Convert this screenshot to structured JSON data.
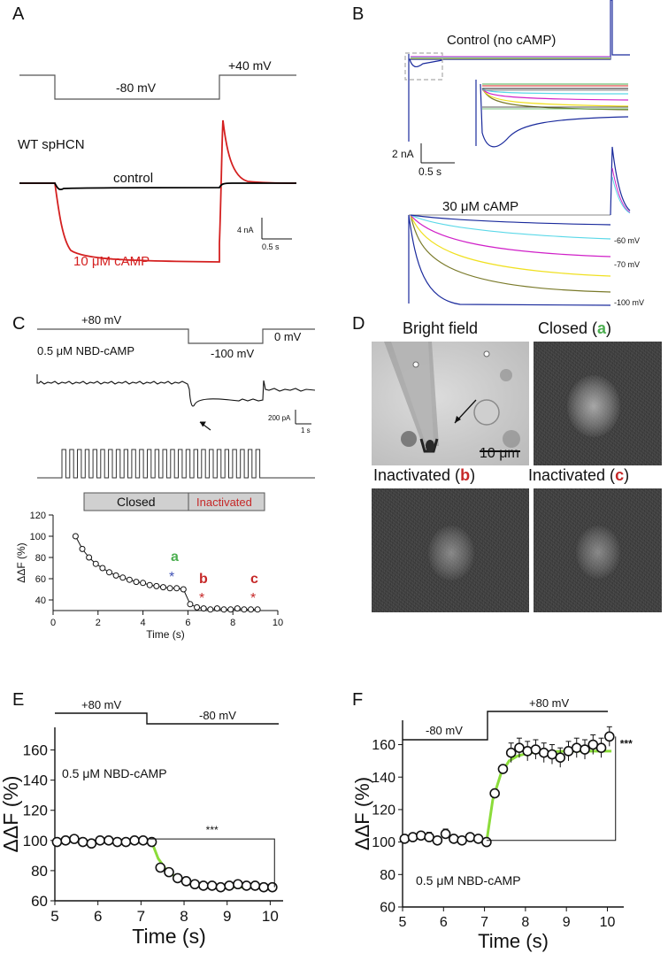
{
  "panels": {
    "A": {
      "label": "A",
      "v_hold": "-80 mV",
      "v_step": "+40 mV",
      "construct": "WT spHCN",
      "trace_control": "control",
      "trace_camp": "10 μM cAMP",
      "scale_current": "4 nA",
      "scale_time": "0.5 s",
      "colors": {
        "control": "#000000",
        "camp": "#d42020"
      }
    },
    "B": {
      "label": "B",
      "title_top": "Control (no cAMP)",
      "title_bottom": "30 μM cAMP",
      "scale_current": "2 nA",
      "scale_time": "0.5 s",
      "voltage_labels": [
        "-60 mV",
        "-70 mV",
        "-100 mV"
      ],
      "trace_colors": [
        "#1a2a9c",
        "#5ad8e8",
        "#d020c8",
        "#f0e020",
        "#7a7a2a",
        "#1a2a9c"
      ]
    },
    "C": {
      "label": "C",
      "v1": "+80 mV",
      "v2": "-100 mV",
      "v3": "0 mV",
      "ligand": "0.5 μM NBD-cAMP",
      "scale_current": "200 pA",
      "scale_time": "1 s",
      "bar_closed": "Closed",
      "bar_inactivated": "Inactivated",
      "markers": [
        "a",
        "b",
        "c"
      ],
      "colors": {
        "a": "#4caf50",
        "b": "#c62828",
        "c": "#c62828",
        "star_a": "#3f51b5",
        "star_bc": "#c62828"
      }
    },
    "D": {
      "label": "D",
      "titles": [
        {
          "text": "Bright field",
          "letter": ""
        },
        {
          "text": "Closed (",
          "letter": "a",
          "close": ")"
        },
        {
          "text": "Inactivated (",
          "letter": "b",
          "close": ")"
        },
        {
          "text": "Inactivated (",
          "letter": "c",
          "close": ")"
        }
      ],
      "scalebar": "10 μm"
    },
    "E": {
      "label": "E",
      "v1": "+80 mV",
      "v2": "-80 mV",
      "ligand": "0.5 μM NBD-cAMP",
      "significance": "***"
    },
    "F": {
      "label": "F",
      "v1": "-80 mV",
      "v2": "+80 mV",
      "ligand": "0.5 μM NBD-cAMP",
      "significance": "***"
    }
  },
  "chart_data": [
    {
      "id": "C",
      "type": "line",
      "xlabel": "Time (s)",
      "ylabel": "ΔΔF (%)",
      "xlim": [
        0,
        10
      ],
      "ylim": [
        30,
        120
      ],
      "xticks": [
        0,
        2,
        4,
        6,
        8,
        10
      ],
      "yticks": [
        40,
        60,
        80,
        100,
        120
      ],
      "x": [
        1.0,
        1.3,
        1.6,
        1.9,
        2.2,
        2.5,
        2.8,
        3.1,
        3.4,
        3.7,
        4.0,
        4.3,
        4.6,
        4.9,
        5.2,
        5.5,
        5.8,
        6.1,
        6.4,
        6.7,
        7.0,
        7.3,
        7.6,
        7.9,
        8.2,
        8.5,
        8.8,
        9.1
      ],
      "series": [
        {
          "values": [
            100,
            88,
            80,
            74,
            70,
            66,
            63,
            61,
            59,
            57,
            56,
            54,
            53,
            52,
            51,
            51,
            50,
            36,
            33,
            32,
            31,
            32,
            31,
            31,
            32,
            31,
            31,
            31
          ]
        }
      ]
    },
    {
      "id": "E",
      "type": "scatter",
      "xlabel": "Time (s)",
      "ylabel": "ΔΔF (%)",
      "xlim": [
        5,
        10.3
      ],
      "ylim": [
        60,
        175
      ],
      "xticks": [
        5,
        6,
        7,
        8,
        9,
        10
      ],
      "yticks": [
        60,
        80,
        100,
        120,
        140,
        160
      ],
      "x": [
        5.05,
        5.25,
        5.45,
        5.65,
        5.85,
        6.05,
        6.25,
        6.45,
        6.65,
        6.85,
        7.05,
        7.25,
        7.45,
        7.65,
        7.85,
        8.05,
        8.25,
        8.45,
        8.65,
        8.85,
        9.05,
        9.25,
        9.45,
        9.65,
        9.85,
        10.05
      ],
      "series": [
        {
          "values": [
            99,
            100,
            101,
            99,
            98,
            100,
            100,
            99,
            99,
            100,
            100,
            99,
            82,
            79,
            75,
            73,
            71,
            70,
            70,
            69,
            70,
            71,
            70,
            70,
            69,
            69
          ]
        }
      ],
      "fit": {
        "x": [
          7.25,
          7.4,
          7.6,
          7.8,
          8.0,
          8.3,
          8.6,
          9.0,
          9.4,
          10.1
        ],
        "y": [
          99,
          88,
          80,
          76,
          73,
          71,
          70,
          69.5,
          69,
          69
        ]
      },
      "significance": {
        "text": "***",
        "from": 7.2,
        "to": 10.1,
        "y": 101
      }
    },
    {
      "id": "F",
      "type": "scatter",
      "xlabel": "Time (s)",
      "ylabel": "ΔΔF (%)",
      "xlim": [
        5,
        10.4
      ],
      "ylim": [
        60,
        175
      ],
      "xticks": [
        5,
        6,
        7,
        8,
        9,
        10
      ],
      "yticks": [
        60,
        80,
        100,
        120,
        140,
        160
      ],
      "x": [
        5.05,
        5.25,
        5.45,
        5.65,
        5.85,
        6.05,
        6.25,
        6.45,
        6.65,
        6.85,
        7.05,
        7.25,
        7.45,
        7.65,
        7.85,
        8.05,
        8.25,
        8.45,
        8.65,
        8.85,
        9.05,
        9.25,
        9.45,
        9.65,
        9.85,
        10.05
      ],
      "series": [
        {
          "values": [
            102,
            103,
            104,
            103,
            101,
            105,
            102,
            101,
            103,
            102,
            100,
            130,
            145,
            155,
            158,
            156,
            157,
            155,
            154,
            152,
            156,
            158,
            157,
            160,
            158,
            165
          ]
        }
      ],
      "fit": {
        "x": [
          7.05,
          7.2,
          7.4,
          7.6,
          7.8,
          8.1,
          8.5,
          9.0,
          9.5,
          10.1
        ],
        "y": [
          100,
          126,
          142,
          150,
          153,
          155,
          155.5,
          156,
          156,
          156
        ]
      },
      "significance": {
        "text": "***",
        "from": 7.05,
        "to": 10.2,
        "y": 101
      }
    }
  ]
}
